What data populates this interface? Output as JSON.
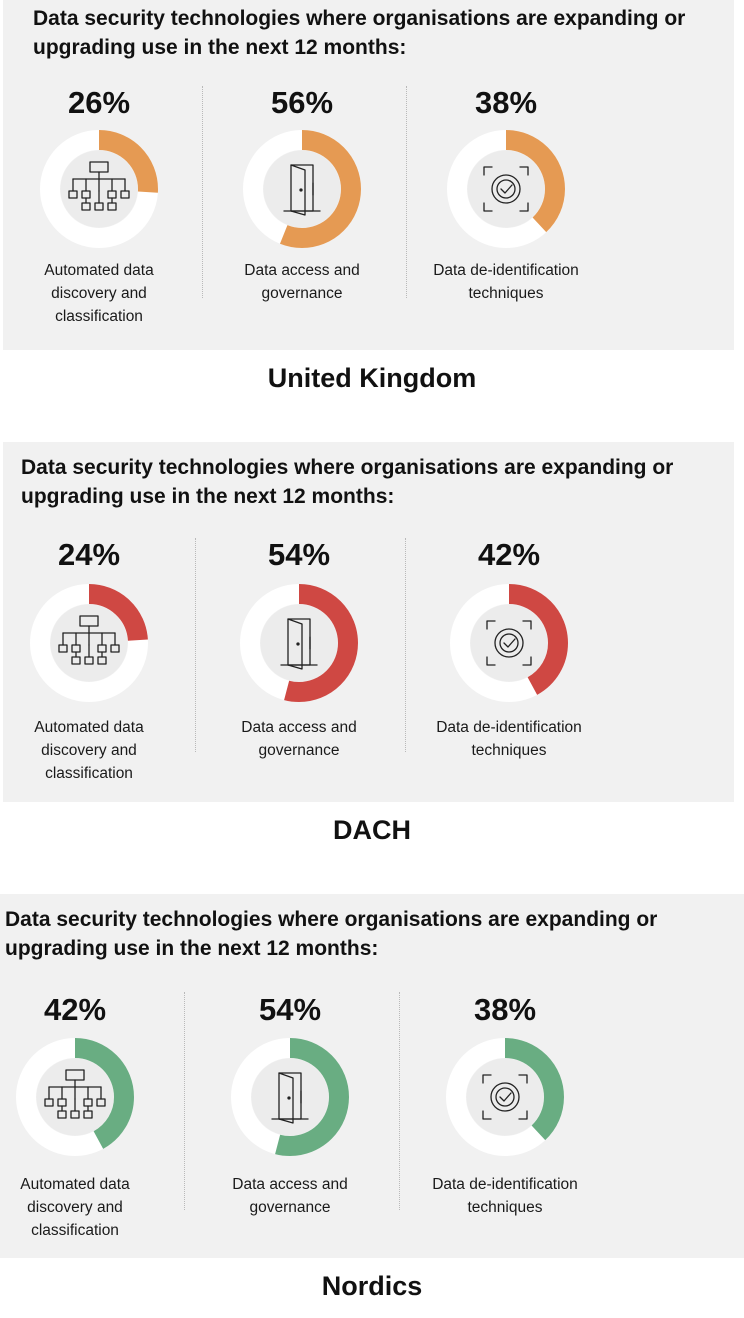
{
  "chart_data": [
    {
      "type": "donut",
      "title": "Data security technologies where organisations are expanding or upgrading use in the next 12 months:",
      "region": "United Kingdom",
      "color": "#e59a53",
      "categories": [
        "Automated data discovery and classification",
        "Data access and governance",
        "Data de-identification techniques"
      ],
      "values": [
        26,
        56,
        38
      ],
      "value_labels": [
        "26%",
        "56%",
        "38%"
      ],
      "label_lines": [
        [
          "Automated data",
          "discovery and",
          "classification"
        ],
        [
          "Data access and",
          "governance"
        ],
        [
          "Data de-identification",
          "techniques"
        ]
      ],
      "icons": [
        "hierarchy-icon",
        "door-icon",
        "face-scan-icon"
      ]
    },
    {
      "type": "donut",
      "title": "Data security technologies where organisations are expanding or upgrading use in the next 12 months:",
      "region": "DACH",
      "color": "#cf4843",
      "categories": [
        "Automated data discovery and classification",
        "Data access and governance",
        "Data de-identification techniques"
      ],
      "values": [
        24,
        54,
        42
      ],
      "value_labels": [
        "24%",
        "54%",
        "42%"
      ],
      "label_lines": [
        [
          "Automated data",
          "discovery and",
          "classification"
        ],
        [
          "Data access and",
          "governance"
        ],
        [
          "Data de-identification",
          "techniques"
        ]
      ],
      "icons": [
        "hierarchy-icon",
        "door-icon",
        "face-scan-icon"
      ]
    },
    {
      "type": "donut",
      "title": "Data security technologies where organisations are expanding or upgrading use in the next 12 months:",
      "region": "Nordics",
      "color": "#69ad82",
      "categories": [
        "Automated data discovery and classification",
        "Data access and governance",
        "Data de-identification techniques"
      ],
      "values": [
        42,
        54,
        38
      ],
      "value_labels": [
        "42%",
        "54%",
        "38%"
      ],
      "label_lines": [
        [
          "Automated data",
          "discovery and",
          "classification"
        ],
        [
          "Data access and",
          "governance"
        ],
        [
          "Data de-identification",
          "techniques"
        ]
      ],
      "icons": [
        "hierarchy-icon",
        "door-icon",
        "face-scan-icon"
      ]
    }
  ],
  "title_lines": [
    "Data security technologies where organisations are expanding or",
    "upgrading use in the next 12 months:"
  ],
  "track_color": "#ffffff",
  "hub_color": "#ececec"
}
